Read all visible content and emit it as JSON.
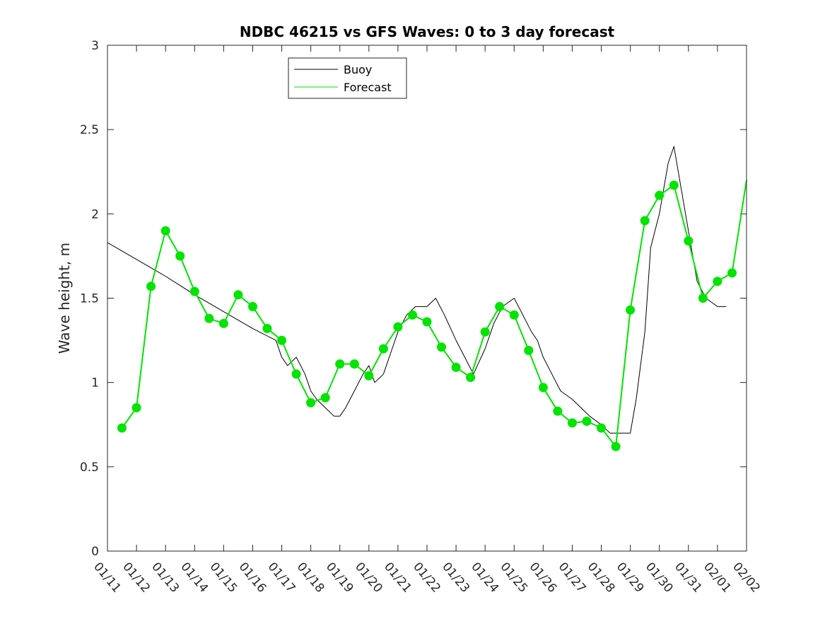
{
  "chart_data": {
    "type": "line",
    "title": "NDBC 46215 vs GFS Waves: 0 to 3 day forecast",
    "xlabel": "",
    "ylabel": "Wave height, m",
    "x_unit": "days since 01/11",
    "xlim": [
      0,
      22
    ],
    "ylim": [
      0,
      3
    ],
    "yticks": [
      0,
      0.5,
      1,
      1.5,
      2,
      2.5,
      3
    ],
    "xtick_labels": [
      "01/11",
      "01/12",
      "01/13",
      "01/14",
      "01/15",
      "01/16",
      "01/17",
      "01/18",
      "01/19",
      "01/20",
      "01/21",
      "01/22",
      "01/23",
      "01/24",
      "01/25",
      "01/26",
      "01/27",
      "01/28",
      "01/29",
      "01/30",
      "01/31",
      "02/01",
      "02/02"
    ],
    "legend": {
      "location": "top",
      "entries": [
        {
          "label": "Buoy",
          "color": "#000000"
        },
        {
          "label": "Forecast",
          "color": "#00e400"
        }
      ]
    },
    "series": [
      {
        "name": "Buoy",
        "color": "#000000",
        "x": [
          0,
          1,
          2,
          3,
          4,
          5,
          5.8,
          6,
          6.2,
          6.5,
          6.8,
          7,
          7.2,
          7.5,
          7.8,
          8.0,
          8.2,
          8.5,
          8.8,
          9.0,
          9.2,
          9.5,
          9.8,
          10.0,
          10.3,
          10.6,
          11.0,
          11.3,
          11.6,
          12.0,
          12.3,
          12.6,
          13.0,
          13.3,
          13.6,
          14.0,
          14.3,
          14.6,
          14.8,
          15.0,
          15.3,
          15.6,
          16.0,
          16.3,
          16.6,
          17.0,
          17.3,
          17.6,
          18.0,
          18.2,
          18.5,
          18.7,
          19.0,
          19.3,
          19.5,
          19.7,
          20.0,
          20.3,
          20.6,
          21.0,
          21.3
        ],
        "y": [
          1.83,
          1.73,
          1.63,
          1.52,
          1.42,
          1.32,
          1.25,
          1.15,
          1.1,
          1.15,
          1.05,
          0.95,
          0.9,
          0.85,
          0.8,
          0.8,
          0.85,
          0.95,
          1.05,
          1.1,
          1.0,
          1.05,
          1.2,
          1.3,
          1.4,
          1.45,
          1.45,
          1.5,
          1.4,
          1.25,
          1.15,
          1.05,
          1.2,
          1.35,
          1.45,
          1.5,
          1.4,
          1.3,
          1.25,
          1.15,
          1.05,
          0.95,
          0.9,
          0.85,
          0.8,
          0.75,
          0.7,
          0.7,
          0.7,
          0.9,
          1.3,
          1.8,
          2.0,
          2.3,
          2.4,
          2.2,
          1.9,
          1.6,
          1.5,
          1.45,
          1.45
        ]
      },
      {
        "name": "Forecast",
        "color": "#00e400",
        "x": [
          0.5,
          1.0,
          1.5,
          2.0,
          2.5,
          3.0,
          3.5,
          4.0,
          4.5,
          5.0,
          5.5,
          6.0,
          6.5,
          7.0,
          7.5,
          8.0,
          8.5,
          9.0,
          9.5,
          10.0,
          10.5,
          11.0,
          11.5,
          12.0,
          12.5,
          13.0,
          13.5,
          14.0,
          14.5,
          15.0,
          15.5,
          16.0,
          16.5,
          17.0,
          17.5,
          18.0,
          18.5,
          19.0,
          19.5,
          20.0,
          20.5,
          21.0,
          21.5,
          22.0
        ],
        "y": [
          0.73,
          0.85,
          1.57,
          1.9,
          1.75,
          1.54,
          1.38,
          1.35,
          1.52,
          1.45,
          1.32,
          1.25,
          1.05,
          0.88,
          0.91,
          1.11,
          1.11,
          1.04,
          1.2,
          1.33,
          1.4,
          1.36,
          1.21,
          1.09,
          1.03,
          1.3,
          1.45,
          1.4,
          1.19,
          0.97,
          0.83,
          0.76,
          0.77,
          0.73,
          0.62,
          1.43,
          1.96,
          2.11,
          2.17,
          1.84,
          1.5,
          1.6,
          1.65,
          2.2
        ]
      }
    ]
  }
}
